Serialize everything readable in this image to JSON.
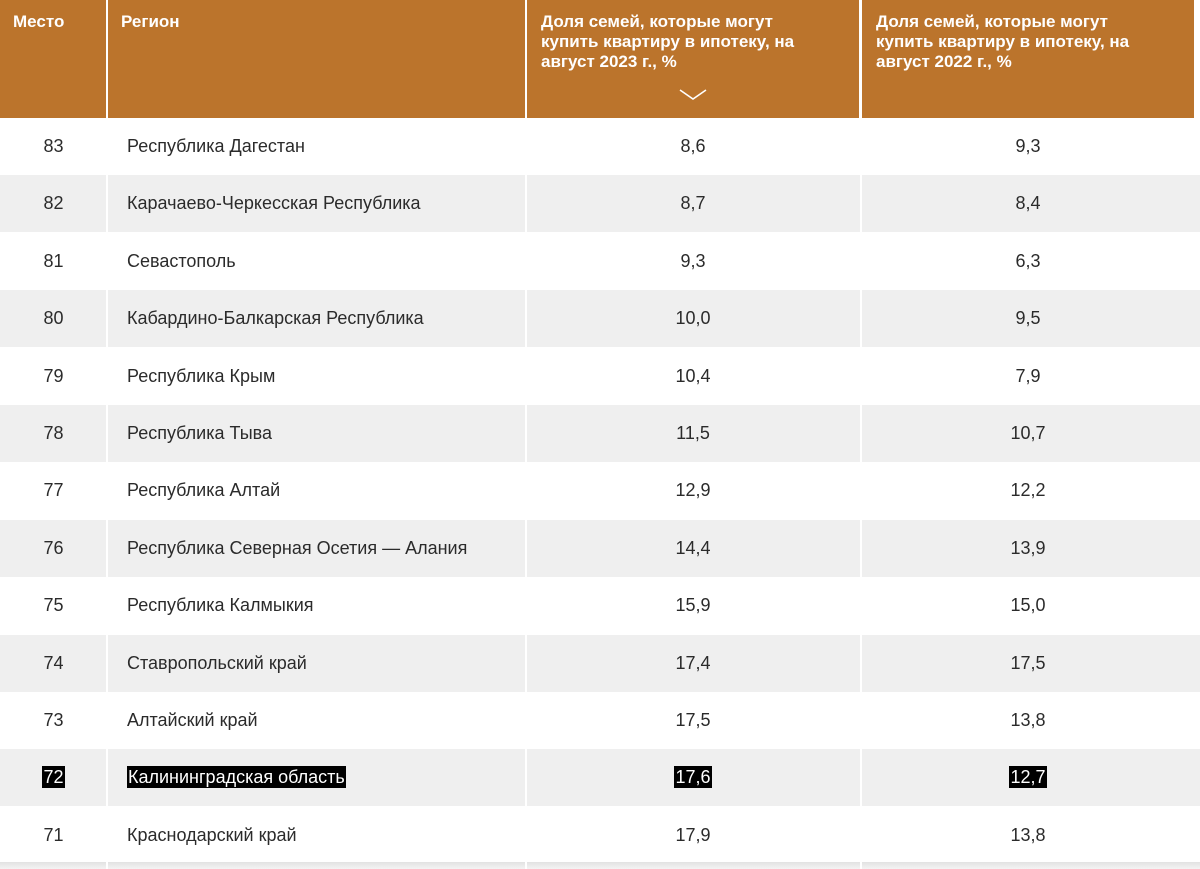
{
  "table": {
    "headers": {
      "rank": "Место",
      "region": "Регион",
      "share_2023": "Доля семей, которые могут купить квартиру в ипотеку, на август 2023 г., %",
      "share_2022": "Доля семей, которые могут купить квартиру в ипотеку, на август 2022 г., %"
    },
    "sort_icon": "chevron-down-icon",
    "colors": {
      "header_bg": "#bb742c",
      "row_alt": "#efefef",
      "highlight": "#000000"
    },
    "rows": [
      {
        "rank": "83",
        "region": "Республика Дагестан",
        "share_2023": "8,6",
        "share_2022": "9,3"
      },
      {
        "rank": "82",
        "region": "Карачаево-Черкесская Республика",
        "share_2023": "8,7",
        "share_2022": "8,4"
      },
      {
        "rank": "81",
        "region": "Севастополь",
        "share_2023": "9,3",
        "share_2022": "6,3"
      },
      {
        "rank": "80",
        "region": "Кабардино-Балкарская Республика",
        "share_2023": "10,0",
        "share_2022": "9,5"
      },
      {
        "rank": "79",
        "region": "Республика Крым",
        "share_2023": "10,4",
        "share_2022": "7,9"
      },
      {
        "rank": "78",
        "region": "Республика Тыва",
        "share_2023": "11,5",
        "share_2022": "10,7"
      },
      {
        "rank": "77",
        "region": "Республика Алтай",
        "share_2023": "12,9",
        "share_2022": "12,2"
      },
      {
        "rank": "76",
        "region": "Республика Северная Осетия — Алания",
        "share_2023": "14,4",
        "share_2022": "13,9"
      },
      {
        "rank": "75",
        "region": "Республика Калмыкия",
        "share_2023": "15,9",
        "share_2022": "15,0"
      },
      {
        "rank": "74",
        "region": "Ставропольский край",
        "share_2023": "17,4",
        "share_2022": "17,5"
      },
      {
        "rank": "73",
        "region": "Алтайский край",
        "share_2023": "17,5",
        "share_2022": "13,8"
      },
      {
        "rank": "72",
        "region": "Калининградская область",
        "share_2023": "17,6",
        "share_2022": "12,7",
        "highlighted": true
      },
      {
        "rank": "71",
        "region": "Краснодарский край",
        "share_2023": "17,9",
        "share_2022": "13,8"
      }
    ]
  }
}
